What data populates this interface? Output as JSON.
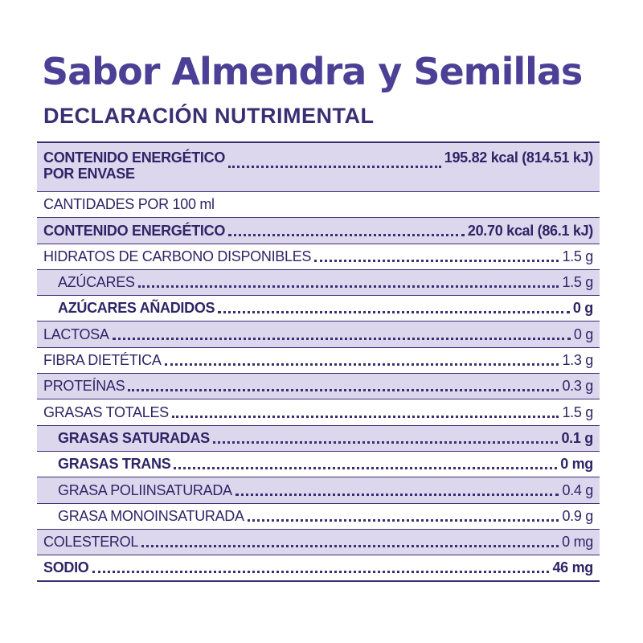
{
  "title": "Sabor Almendra y Semillas",
  "subtitle": "DECLARACIÓN NUTRIMENTAL",
  "table": {
    "envase_label_line1": "CONTENIDO ENERGÉTICO",
    "envase_label_line2": "POR ENVASE",
    "envase_value": "195.82 kcal (814.51 kJ)",
    "per_100ml_heading": "CANTIDADES POR 100 ml",
    "rows": [
      {
        "label": "CONTENIDO ENERGÉTICO",
        "value": "20.70 kcal (86.1 kJ)"
      },
      {
        "label": "HIDRATOS DE CARBONO DISPONIBLES",
        "value": "1.5 g"
      },
      {
        "label": "AZÚCARES",
        "value": "1.5 g"
      },
      {
        "label": "AZÚCARES AÑADIDOS",
        "value": "0 g"
      },
      {
        "label": "LACTOSA",
        "value": "0 g"
      },
      {
        "label": "FIBRA DIETÉTICA",
        "value": "1.3 g"
      },
      {
        "label": "PROTEÍNAS",
        "value": "0.3 g"
      },
      {
        "label": "GRASAS TOTALES",
        "value": "1.5 g"
      },
      {
        "label": "GRASAS SATURADAS",
        "value": "0.1 g"
      },
      {
        "label": "GRASAS TRANS",
        "value": "0 mg"
      },
      {
        "label": "GRASA POLIINSATURADA",
        "value": "0.4 g"
      },
      {
        "label": "GRASA MONOINSATURADA",
        "value": "0.9 g"
      },
      {
        "label": "COLESTEROL",
        "value": "0 mg"
      },
      {
        "label": "SODIO",
        "value": "46 mg"
      }
    ]
  },
  "colors": {
    "title": "#4b3f96",
    "text": "#3a2f73",
    "row_shade": "#ddd7ee"
  }
}
